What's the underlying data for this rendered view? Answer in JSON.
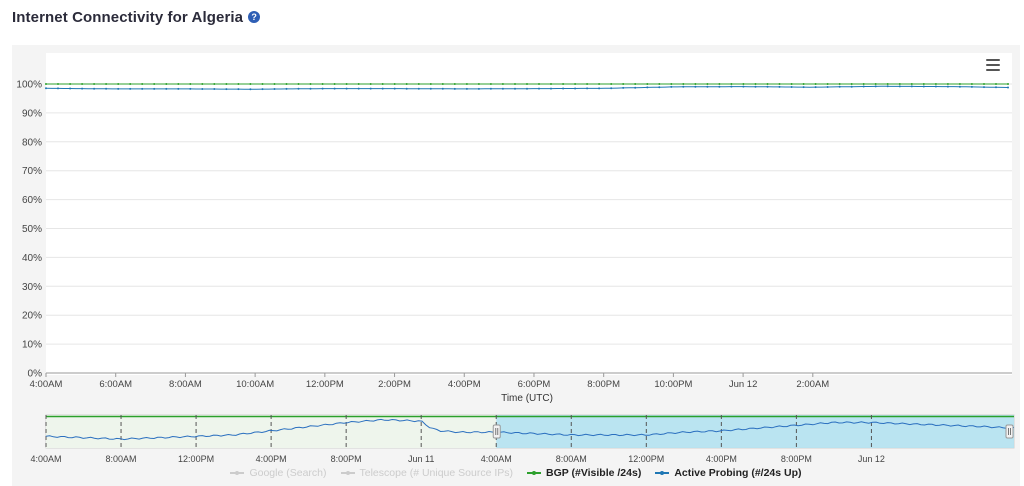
{
  "page": {
    "title": "Internet Connectivity for Algeria",
    "help_icon": "question-circle-icon",
    "menu_icon": "hamburger-menu-icon"
  },
  "chart_data": {
    "type": "line",
    "xlabel": "Time (UTC)",
    "ylabel": "",
    "ylim": [
      0,
      100
    ],
    "yticks": [
      "0%",
      "10%",
      "20%",
      "30%",
      "40%",
      "50%",
      "60%",
      "70%",
      "80%",
      "90%",
      "100%"
    ],
    "x_range_hours": [
      4,
      31.6
    ],
    "xticks": [
      {
        "hour": 4,
        "label": "4:00AM"
      },
      {
        "hour": 6,
        "label": "6:00AM"
      },
      {
        "hour": 8,
        "label": "8:00AM"
      },
      {
        "hour": 10,
        "label": "10:00AM"
      },
      {
        "hour": 12,
        "label": "12:00PM"
      },
      {
        "hour": 14,
        "label": "2:00PM"
      },
      {
        "hour": 16,
        "label": "4:00PM"
      },
      {
        "hour": 18,
        "label": "6:00PM"
      },
      {
        "hour": 20,
        "label": "8:00PM"
      },
      {
        "hour": 22,
        "label": "10:00PM"
      },
      {
        "hour": 24,
        "label": "Jun 12"
      },
      {
        "hour": 26,
        "label": "2:00AM"
      }
    ],
    "series": [
      {
        "name": "Google (Search)",
        "color": "#cccccc",
        "visible": false,
        "values": []
      },
      {
        "name": "Telescope (# Unique Source IPs)",
        "color": "#cccccc",
        "visible": false,
        "values": []
      },
      {
        "name": "BGP (#Visible /24s)",
        "color": "#2ca02c",
        "visible": true,
        "x": [
          4,
          31.6
        ],
        "values": [
          100,
          100
        ]
      },
      {
        "name": "Active Probing (#/24s Up)",
        "color": "#1f77b4",
        "visible": true,
        "x": [
          4,
          6,
          8,
          10,
          12,
          14,
          16,
          18,
          20,
          22,
          24,
          26,
          28,
          30,
          31.6
        ],
        "values": [
          98.5,
          98.3,
          98.3,
          98.2,
          98.4,
          98.4,
          98.3,
          98.4,
          98.5,
          99.0,
          99.1,
          98.9,
          99.2,
          99.1,
          98.8
        ]
      }
    ],
    "navigator": {
      "x_range_hours": [
        -20,
        31.6
      ],
      "selected_range_hours": [
        4,
        31.6
      ],
      "xticks": [
        {
          "hour": -20,
          "label": "4:00AM"
        },
        {
          "hour": -16,
          "label": "8:00AM"
        },
        {
          "hour": -12,
          "label": "12:00PM"
        },
        {
          "hour": -8,
          "label": "4:00PM"
        },
        {
          "hour": -4,
          "label": "8:00PM"
        },
        {
          "hour": 0,
          "label": "Jun 11"
        },
        {
          "hour": 4,
          "label": "4:00AM"
        },
        {
          "hour": 8,
          "label": "8:00AM"
        },
        {
          "hour": 12,
          "label": "12:00PM"
        },
        {
          "hour": 16,
          "label": "4:00PM"
        },
        {
          "hour": 20,
          "label": "8:00PM"
        },
        {
          "hour": 24,
          "label": "Jun 12"
        }
      ],
      "series": {
        "x": [
          -20,
          -18,
          -16,
          -14,
          -12,
          -10,
          -8,
          -6,
          -4,
          -2,
          0,
          0.5,
          1,
          2,
          4,
          6,
          8,
          10,
          12,
          14,
          16,
          18,
          20,
          22,
          24,
          26,
          28,
          30,
          31.6
        ],
        "values": [
          98.2,
          98.1,
          98.0,
          98.1,
          98.2,
          98.3,
          98.6,
          98.9,
          99.2,
          99.4,
          99.3,
          98.8,
          98.6,
          98.5,
          98.5,
          98.4,
          98.3,
          98.3,
          98.3,
          98.5,
          98.6,
          98.8,
          99.0,
          99.2,
          99.2,
          99.1,
          99.0,
          98.9,
          98.8
        ]
      }
    },
    "grid": true,
    "legend_position": "bottom"
  }
}
